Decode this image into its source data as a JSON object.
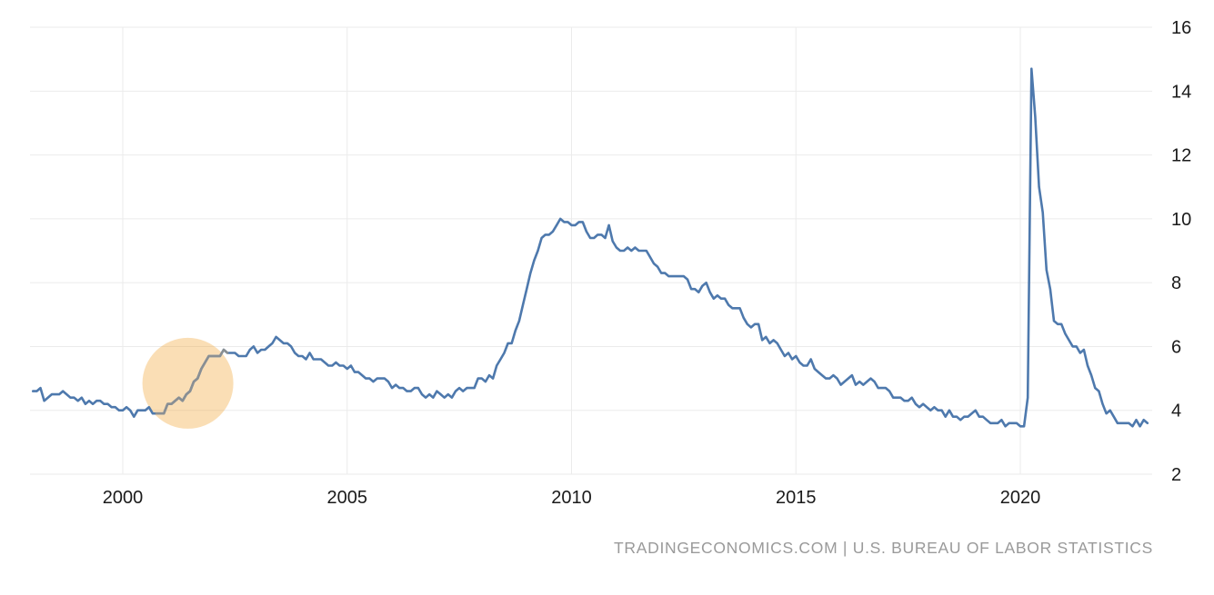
{
  "chart_data": {
    "type": "line",
    "grid": true,
    "legend": "none",
    "xlim": [
      1997.95,
      2022.95
    ],
    "ylim": [
      2,
      16
    ],
    "x_ticks": [
      {
        "value": 2000,
        "label": "2000"
      },
      {
        "value": 2005,
        "label": "2005"
      },
      {
        "value": 2010,
        "label": "2010"
      },
      {
        "value": 2015,
        "label": "2015"
      },
      {
        "value": 2020,
        "label": "2020"
      }
    ],
    "y_ticks": [
      {
        "value": 2,
        "label": "2"
      },
      {
        "value": 4,
        "label": "4"
      },
      {
        "value": 6,
        "label": "6"
      },
      {
        "value": 8,
        "label": "8"
      },
      {
        "value": 10,
        "label": "10"
      },
      {
        "value": 12,
        "label": "12"
      },
      {
        "value": 14,
        "label": "14"
      },
      {
        "value": 16,
        "label": "16"
      }
    ],
    "series": {
      "name": "unemployment-rate-percent",
      "color": "#4e79ad",
      "monthly_by_year": {
        "1998": [
          4.6,
          4.6,
          4.7,
          4.3,
          4.4,
          4.5,
          4.5,
          4.5,
          4.6,
          4.5,
          4.4,
          4.4
        ],
        "1999": [
          4.3,
          4.4,
          4.2,
          4.3,
          4.2,
          4.3,
          4.3,
          4.2,
          4.2,
          4.1,
          4.1,
          4.0
        ],
        "2000": [
          4.0,
          4.1,
          4.0,
          3.8,
          4.0,
          4.0,
          4.0,
          4.1,
          3.9,
          3.9,
          3.9,
          3.9
        ],
        "2001": [
          4.2,
          4.2,
          4.3,
          4.4,
          4.3,
          4.5,
          4.6,
          4.9,
          5.0,
          5.3,
          5.5,
          5.7
        ],
        "2002": [
          5.7,
          5.7,
          5.7,
          5.9,
          5.8,
          5.8,
          5.8,
          5.7,
          5.7,
          5.7,
          5.9,
          6.0
        ],
        "2003": [
          5.8,
          5.9,
          5.9,
          6.0,
          6.1,
          6.3,
          6.2,
          6.1,
          6.1,
          6.0,
          5.8,
          5.7
        ],
        "2004": [
          5.7,
          5.6,
          5.8,
          5.6,
          5.6,
          5.6,
          5.5,
          5.4,
          5.4,
          5.5,
          5.4,
          5.4
        ],
        "2005": [
          5.3,
          5.4,
          5.2,
          5.2,
          5.1,
          5.0,
          5.0,
          4.9,
          5.0,
          5.0,
          5.0,
          4.9
        ],
        "2006": [
          4.7,
          4.8,
          4.7,
          4.7,
          4.6,
          4.6,
          4.7,
          4.7,
          4.5,
          4.4,
          4.5,
          4.4
        ],
        "2007": [
          4.6,
          4.5,
          4.4,
          4.5,
          4.4,
          4.6,
          4.7,
          4.6,
          4.7,
          4.7,
          4.7,
          5.0
        ],
        "2008": [
          5.0,
          4.9,
          5.1,
          5.0,
          5.4,
          5.6,
          5.8,
          6.1,
          6.1,
          6.5,
          6.8,
          7.3
        ],
        "2009": [
          7.8,
          8.3,
          8.7,
          9.0,
          9.4,
          9.5,
          9.5,
          9.6,
          9.8,
          10.0,
          9.9,
          9.9
        ],
        "2010": [
          9.8,
          9.8,
          9.9,
          9.9,
          9.6,
          9.4,
          9.4,
          9.5,
          9.5,
          9.4,
          9.8,
          9.3
        ],
        "2011": [
          9.1,
          9.0,
          9.0,
          9.1,
          9.0,
          9.1,
          9.0,
          9.0,
          9.0,
          8.8,
          8.6,
          8.5
        ],
        "2012": [
          8.3,
          8.3,
          8.2,
          8.2,
          8.2,
          8.2,
          8.2,
          8.1,
          7.8,
          7.8,
          7.7,
          7.9
        ],
        "2013": [
          8.0,
          7.7,
          7.5,
          7.6,
          7.5,
          7.5,
          7.3,
          7.2,
          7.2,
          7.2,
          6.9,
          6.7
        ],
        "2014": [
          6.6,
          6.7,
          6.7,
          6.2,
          6.3,
          6.1,
          6.2,
          6.1,
          5.9,
          5.7,
          5.8,
          5.6
        ],
        "2015": [
          5.7,
          5.5,
          5.4,
          5.4,
          5.6,
          5.3,
          5.2,
          5.1,
          5.0,
          5.0,
          5.1,
          5.0
        ],
        "2016": [
          4.8,
          4.9,
          5.0,
          5.1,
          4.8,
          4.9,
          4.8,
          4.9,
          5.0,
          4.9,
          4.7,
          4.7
        ],
        "2017": [
          4.7,
          4.6,
          4.4,
          4.4,
          4.4,
          4.3,
          4.3,
          4.4,
          4.2,
          4.1,
          4.2,
          4.1
        ],
        "2018": [
          4.0,
          4.1,
          4.0,
          4.0,
          3.8,
          4.0,
          3.8,
          3.8,
          3.7,
          3.8,
          3.8,
          3.9
        ],
        "2019": [
          4.0,
          3.8,
          3.8,
          3.7,
          3.6,
          3.6,
          3.6,
          3.7,
          3.5,
          3.6,
          3.6,
          3.6
        ],
        "2020": [
          3.5,
          3.5,
          4.4,
          14.7,
          13.2,
          11.0,
          10.2,
          8.4,
          7.8,
          6.8,
          6.7,
          6.7
        ],
        "2021": [
          6.4,
          6.2,
          6.0,
          6.0,
          5.8,
          5.9,
          5.4,
          5.1,
          4.7,
          4.6,
          4.2,
          3.9
        ],
        "2022": [
          4.0,
          3.8,
          3.6,
          3.6,
          3.6,
          3.6,
          3.5,
          3.7,
          3.5,
          3.7,
          3.6
        ]
      }
    },
    "highlight": {
      "shape": "circle",
      "center_year": 2001.45,
      "center_value": 4.85,
      "radius_px": 50,
      "color": "#f2a93c",
      "opacity": 0.38,
      "line_segment": {
        "start_year": 2000.75,
        "end_year": 2002.35,
        "color": "#8a8f93"
      }
    },
    "source": "TRADINGECONOMICS.COM | U.S. BUREAU OF LABOR STATISTICS"
  }
}
